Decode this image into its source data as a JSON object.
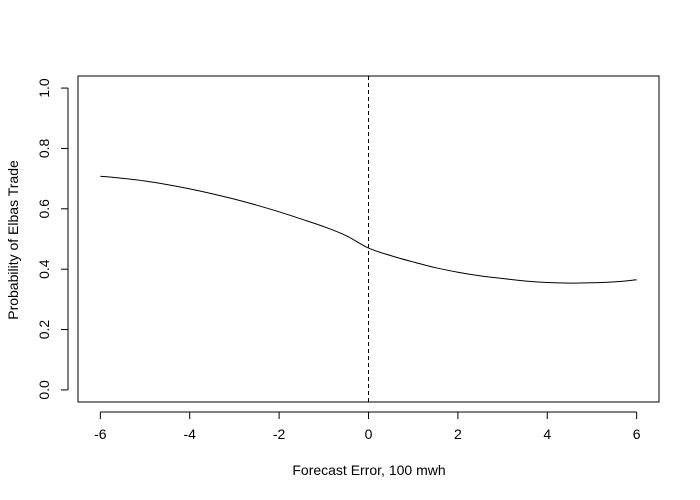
{
  "chart_data": {
    "type": "line",
    "title": "",
    "xlabel": "Forecast Error, 100 mwh",
    "ylabel": "Probability of Elbas Trade",
    "xlim": [
      -6.5,
      6.5
    ],
    "ylim": [
      -0.04,
      1.04
    ],
    "x_ticks": [
      -6,
      -4,
      -2,
      0,
      2,
      4,
      6
    ],
    "x_tick_labels": [
      "-6",
      "-4",
      "-2",
      "0",
      "2",
      "4",
      "6"
    ],
    "y_ticks": [
      0.0,
      0.2,
      0.4,
      0.6,
      0.8,
      1.0
    ],
    "y_tick_labels": [
      "0.0",
      "0.2",
      "0.4",
      "0.6",
      "0.8",
      "1.0"
    ],
    "grid": false,
    "reference_line": {
      "x": 0,
      "style": "dashed"
    },
    "series": [
      {
        "x": [
          -6,
          -5.5,
          -5,
          -4.5,
          -4,
          -3.5,
          -3,
          -2.5,
          -2,
          -1.5,
          -1,
          -0.5,
          0,
          0.5,
          1,
          1.5,
          2,
          2.5,
          3,
          3.5,
          4,
          4.5,
          5,
          5.5,
          6
        ],
        "values": [
          0.708,
          0.701,
          0.692,
          0.68,
          0.666,
          0.65,
          0.632,
          0.612,
          0.59,
          0.566,
          0.541,
          0.511,
          0.47,
          0.445,
          0.424,
          0.405,
          0.39,
          0.378,
          0.369,
          0.361,
          0.356,
          0.354,
          0.355,
          0.358,
          0.365
        ]
      }
    ],
    "colors": {
      "line": "#000000",
      "frame": "#000000"
    }
  }
}
